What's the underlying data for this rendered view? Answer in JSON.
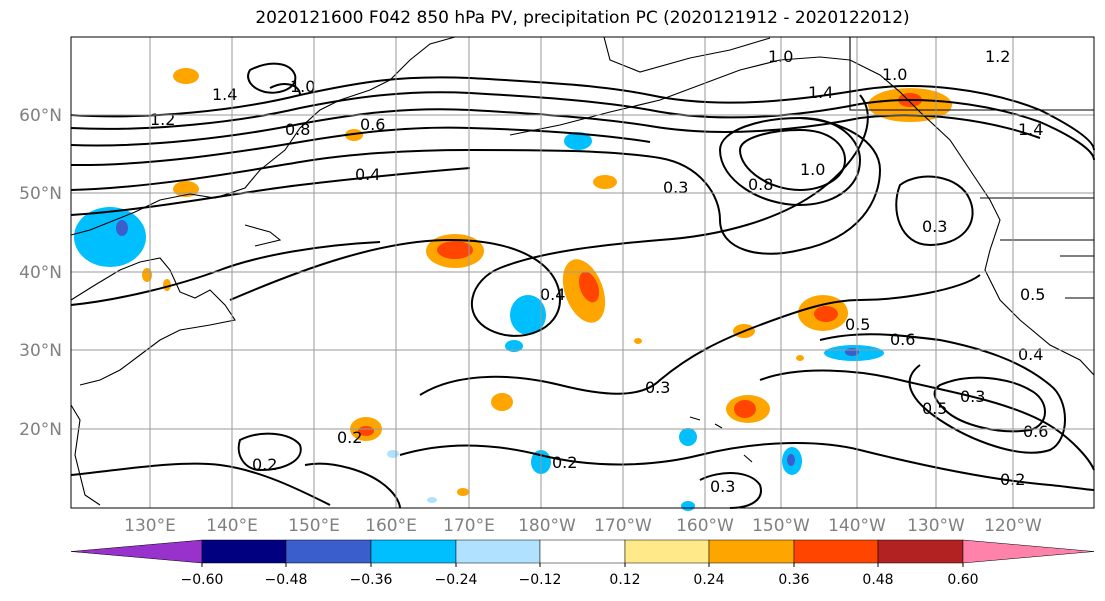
{
  "title": "2020121600 F042 850 hPa PV, precipitation PC (2020121912 - 2020122012)",
  "map": {
    "lon_labels": [
      "130°E",
      "140°E",
      "150°E",
      "160°E",
      "170°E",
      "180°W",
      "170°W",
      "160°W",
      "150°W",
      "140°W",
      "130°W",
      "120°W"
    ],
    "lat_labels": [
      "60°N",
      "50°N",
      "40°N",
      "30°N",
      "20°N"
    ],
    "contour_labels": [
      {
        "text": "1.4"
      },
      {
        "text": "1.0"
      },
      {
        "text": "0.8"
      },
      {
        "text": "0.6"
      },
      {
        "text": "0.4"
      },
      {
        "text": "1.2"
      },
      {
        "text": "1.0"
      },
      {
        "text": "1.4"
      },
      {
        "text": "1.0"
      },
      {
        "text": "1.0"
      },
      {
        "text": "0.8"
      },
      {
        "text": "0.3"
      },
      {
        "text": "0.4"
      },
      {
        "text": "0.3"
      },
      {
        "text": "0.5"
      },
      {
        "text": "0.6"
      },
      {
        "text": "0.4"
      },
      {
        "text": "0.3"
      },
      {
        "text": "0.5"
      },
      {
        "text": "0.6"
      },
      {
        "text": "0.2"
      },
      {
        "text": "0.2"
      },
      {
        "text": "0.2"
      },
      {
        "text": "0.3"
      },
      {
        "text": "0.2"
      },
      {
        "text": "0.3"
      },
      {
        "text": "1.2"
      },
      {
        "text": "1.4"
      },
      {
        "text": "0.5"
      }
    ]
  },
  "colorbar": {
    "tick_labels": [
      "−0.60",
      "−0.48",
      "−0.36",
      "−0.24",
      "−0.12",
      "0.12",
      "0.24",
      "0.36",
      "0.48",
      "0.60"
    ],
    "colors": [
      "#9932cc",
      "#000080",
      "#3a5fcd",
      "#00bfff",
      "#b0e2ff",
      "#ffffff",
      "#ffe989",
      "#ffa500",
      "#ff4500",
      "#b22222",
      "#ff82ab"
    ]
  }
}
